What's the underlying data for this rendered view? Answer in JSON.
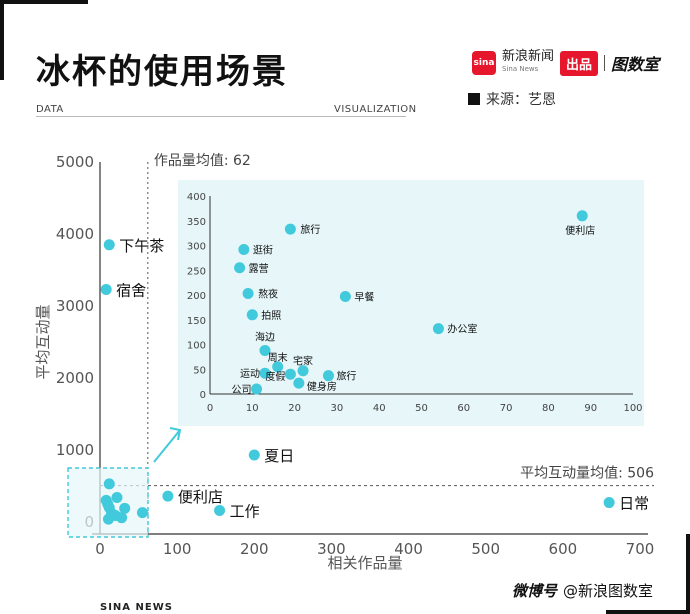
{
  "title": "冰杯的使用场景",
  "tag_left": "DATA",
  "tag_right": "VISUALIZATION",
  "source": "来源：艺恩",
  "brand": {
    "name": "新浪新闻",
    "sub": "Sina News",
    "badge": "出品",
    "partner": "图数室",
    "sina": "sina"
  },
  "footer_left": "SINA NEWS",
  "footer_right": {
    "platform": "微博号",
    "handle": "@新浪图数室"
  },
  "colors": {
    "point": "#41c9dc",
    "inset_bg": "#e6f6f9",
    "axis": "#333333"
  },
  "chart_data": [
    {
      "type": "scatter",
      "xlabel": "相关作品量",
      "ylabel": "平均互动量",
      "xlim": [
        0,
        700
      ],
      "ylim": [
        0,
        5000
      ],
      "xticks": [
        0,
        100,
        200,
        300,
        400,
        500,
        600,
        700
      ],
      "yticks": [
        0,
        1000,
        2000,
        3000,
        4000,
        5000
      ],
      "reference_lines": {
        "x": {
          "value": 62,
          "label": "作品量均值: 62"
        },
        "y": {
          "value": 506,
          "label": "平均互动量均值: 506"
        }
      },
      "points": [
        {
          "label": "下午茶",
          "x": 12,
          "y": 3850
        },
        {
          "label": "宿舍",
          "x": 8,
          "y": 3230
        },
        {
          "label": "夏日",
          "x": 200,
          "y": 930
        },
        {
          "label": "便利店",
          "x": 88,
          "y": 360
        },
        {
          "label": "工作",
          "x": 155,
          "y": 160
        },
        {
          "label": "日常",
          "x": 660,
          "y": 270
        },
        {
          "label": "",
          "x": 12,
          "y": 530
        },
        {
          "label": "",
          "x": 22,
          "y": 340
        },
        {
          "label": "",
          "x": 8,
          "y": 300
        },
        {
          "label": "",
          "x": 10,
          "y": 250
        },
        {
          "label": "",
          "x": 12,
          "y": 200
        },
        {
          "label": "",
          "x": 32,
          "y": 190
        },
        {
          "label": "",
          "x": 55,
          "y": 130
        },
        {
          "label": "",
          "x": 15,
          "y": 120
        },
        {
          "label": "",
          "x": 20,
          "y": 90
        },
        {
          "label": "",
          "x": 28,
          "y": 60
        },
        {
          "label": "",
          "x": 11,
          "y": 40
        }
      ]
    },
    {
      "type": "scatter",
      "xlim": [
        0,
        100
      ],
      "ylim": [
        0,
        400
      ],
      "xticks": [
        0,
        10,
        20,
        30,
        40,
        50,
        60,
        70,
        80,
        90,
        100
      ],
      "yticks": [
        0,
        50,
        100,
        150,
        200,
        250,
        300,
        350,
        400
      ],
      "points": [
        {
          "label": "便利店",
          "x": 88,
          "y": 360
        },
        {
          "label": "旅行",
          "x": 19,
          "y": 333
        },
        {
          "label": "逛街",
          "x": 8,
          "y": 292
        },
        {
          "label": "露营",
          "x": 7,
          "y": 255
        },
        {
          "label": "熬夜",
          "x": 9,
          "y": 203
        },
        {
          "label": "早餐",
          "x": 32,
          "y": 197
        },
        {
          "label": "拍照",
          "x": 10,
          "y": 160
        },
        {
          "label": "办公室",
          "x": 54,
          "y": 132
        },
        {
          "label": "海边",
          "x": 13,
          "y": 88
        },
        {
          "label": "周末",
          "x": 16,
          "y": 55
        },
        {
          "label": "宅家",
          "x": 22,
          "y": 47
        },
        {
          "label": "运动",
          "x": 13,
          "y": 42
        },
        {
          "label": "旅行",
          "x": 28,
          "y": 37
        },
        {
          "label": "度假",
          "x": 19,
          "y": 40
        },
        {
          "label": "健身房",
          "x": 21,
          "y": 22
        },
        {
          "label": "公司",
          "x": 11,
          "y": 10
        }
      ]
    }
  ]
}
